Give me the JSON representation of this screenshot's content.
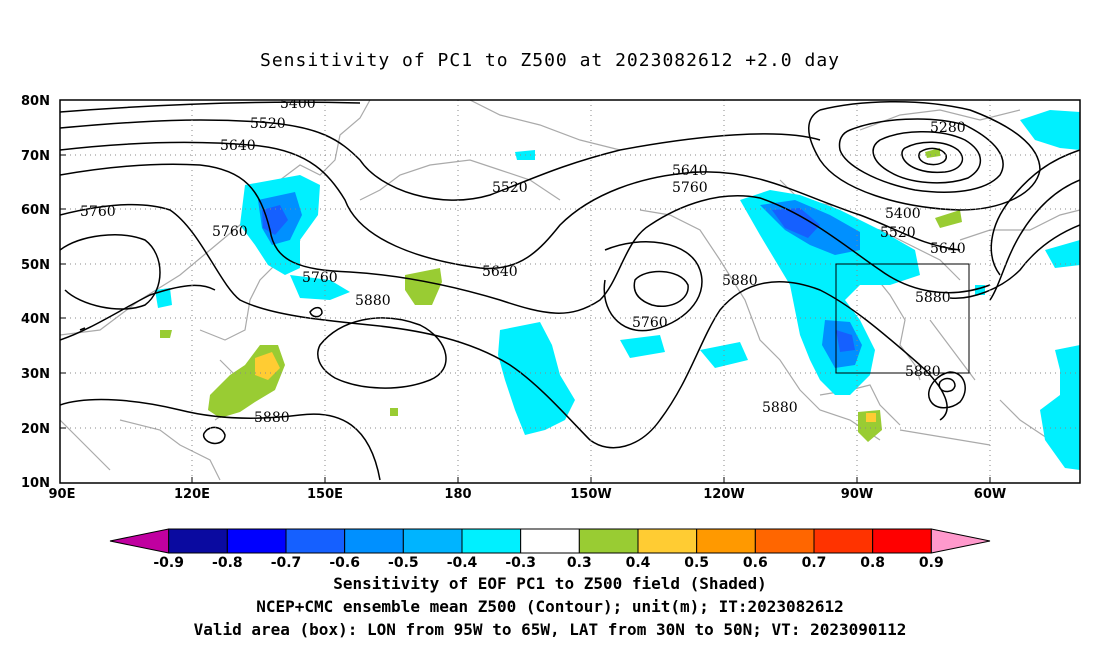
{
  "title": "Sensitivity of PC1 to Z500 at 2023082612 +2.0 day",
  "lat_labels": [
    "80N",
    "70N",
    "60N",
    "50N",
    "40N",
    "30N",
    "20N",
    "10N"
  ],
  "lon_labels": [
    "90E",
    "120E",
    "150E",
    "180",
    "150W",
    "120W",
    "90W",
    "60W"
  ],
  "contours": {
    "labels": [
      "5400",
      "5520",
      "5640",
      "5520",
      "5640",
      "5760",
      "5760",
      "5640",
      "5760",
      "5760",
      "5880",
      "5880",
      "5880",
      "5880",
      "5280",
      "5400",
      "5520",
      "5640",
      "5760",
      "5880"
    ]
  },
  "colorbar": {
    "labels": [
      "-0.9",
      "-0.8",
      "-0.7",
      "-0.6",
      "-0.5",
      "-0.4",
      "-0.3",
      "0.3",
      "0.4",
      "0.5",
      "0.6",
      "0.7",
      "0.8",
      "0.9"
    ],
    "colors": [
      "#c000a0",
      "#0a0aa0",
      "#0000ff",
      "#1560ff",
      "#0090ff",
      "#00b4ff",
      "#00f0ff",
      "#ffffff",
      "#99cc33",
      "#ffcc33",
      "#ff9900",
      "#ff6600",
      "#ff3300",
      "#ff0000",
      "#ff99cc"
    ]
  },
  "caption": {
    "line1": "Sensitivity of EOF PC1 to Z500 field (Shaded)",
    "line2": "NCEP+CMC ensemble mean Z500 (Contour); unit(m); IT:2023082612",
    "line3": "Valid area (box): LON from 95W to 65W, LAT from 30N to 50N; VT: 2023090112"
  }
}
